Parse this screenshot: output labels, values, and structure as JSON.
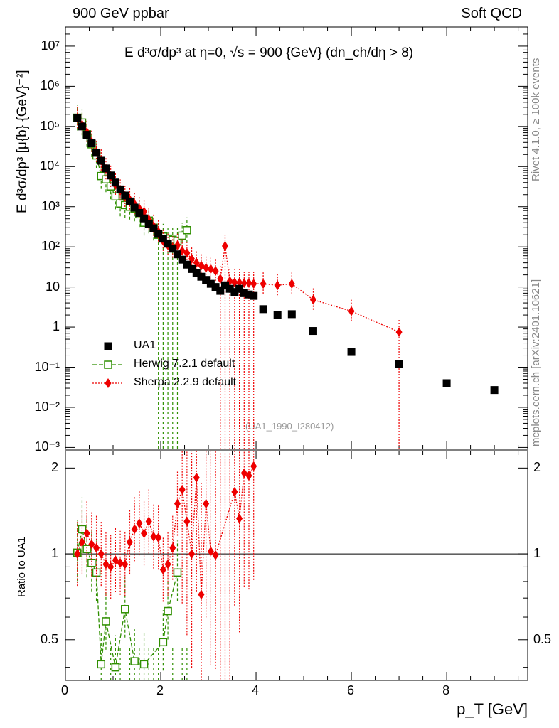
{
  "header": {
    "left": "900 GeV ppbar",
    "right": "Soft QCD"
  },
  "side_labels": {
    "top": "Rivet 4.1.0, ≥ 100k events",
    "bottom": "mcplots.cern.ch [arXiv:2401.10621]"
  },
  "reference_id": "(UA1_1990_I280412)",
  "chart_data": {
    "type": "scatter",
    "title": "E d³σ/dp³ at η=0, √s = 900 {GeV} (dn_ch/dη > 8)",
    "xlabel": "p_T [GeV]",
    "ylabel_top": "E d³σ/dp³ [μ{b} {GeV}⁻²]",
    "ylabel_bottom": "Ratio to UA1",
    "xlim": [
      0,
      9.7
    ],
    "ylim_top": [
      0.0009,
      30000000
    ],
    "ylim_bottom": [
      0.36,
      2.3
    ],
    "y_scale_top": "log",
    "y_scale_bottom": "log",
    "x_ticks": [
      "0",
      "2",
      "4",
      "6",
      "8"
    ],
    "y_ticks_top": [
      "10⁻³",
      "10⁻²",
      "10⁻¹",
      "1",
      "10",
      "10²",
      "10³",
      "10⁴",
      "10⁵",
      "10⁶",
      "10⁷"
    ],
    "y_ticks_bottom": [
      "0.5",
      "1",
      "2"
    ],
    "legend_position": "bottom-left",
    "series": [
      {
        "name": "UA1",
        "color": "#000000",
        "marker": "filled-square",
        "x": [
          0.25,
          0.35,
          0.45,
          0.55,
          0.65,
          0.75,
          0.85,
          0.95,
          1.05,
          1.15,
          1.25,
          1.35,
          1.45,
          1.55,
          1.65,
          1.75,
          1.85,
          1.95,
          2.05,
          2.15,
          2.25,
          2.35,
          2.45,
          2.55,
          2.65,
          2.75,
          2.85,
          2.95,
          3.05,
          3.15,
          3.25,
          3.35,
          3.45,
          3.55,
          3.65,
          3.75,
          3.85,
          3.95,
          4.15,
          4.45,
          4.75,
          5.2,
          6.0,
          7.0,
          8.0,
          9.0
        ],
        "y": [
          160000,
          100000,
          62000,
          38000,
          22000,
          14000,
          9000,
          6000,
          4000,
          2700,
          1900,
          1350,
          950,
          700,
          510,
          370,
          290,
          210,
          160,
          120,
          90,
          65,
          48,
          36,
          28,
          22,
          18,
          15,
          12,
          10,
          8,
          11,
          9,
          7.5,
          9,
          7,
          6.5,
          6,
          2.8,
          2.0,
          2.1,
          0.8,
          0.24,
          0.12,
          0.04,
          0.027
        ]
      },
      {
        "name": "Herwig 7.2.1 default",
        "color": "#2f8f00",
        "marker": "open-square",
        "x": [
          0.25,
          0.35,
          0.45,
          0.55,
          0.65,
          0.75,
          0.85,
          0.95,
          1.05,
          1.15,
          1.25,
          1.35,
          1.45,
          1.55,
          1.65,
          1.75,
          1.85,
          1.95,
          2.05,
          2.15,
          2.25,
          2.35,
          2.45,
          2.55
        ],
        "y": [
          165000,
          125000,
          64000,
          36000,
          19000,
          5800,
          4800,
          3200,
          1800,
          1200,
          1100,
          1000,
          900,
          650,
          400,
          450,
          300,
          200,
          180,
          160,
          150,
          140,
          190,
          260
        ],
        "ratio": [
          1.01,
          1.22,
          1.04,
          0.93,
          0.86,
          0.41,
          0.58,
          null,
          0.4,
          null,
          0.64,
          null,
          0.42,
          null,
          0.41,
          null,
          null,
          null,
          0.49,
          0.63,
          null,
          0.86,
          null,
          null
        ]
      },
      {
        "name": "Sherpa 2.2.9 default",
        "color": "#ee0000",
        "marker": "filled-diamond",
        "x": [
          0.25,
          0.35,
          0.45,
          0.55,
          0.65,
          0.75,
          0.85,
          0.95,
          1.05,
          1.15,
          1.25,
          1.35,
          1.45,
          1.55,
          1.65,
          1.75,
          1.85,
          1.95,
          2.05,
          2.15,
          2.25,
          2.35,
          2.45,
          2.55,
          2.65,
          2.75,
          2.85,
          2.95,
          3.05,
          3.15,
          3.25,
          3.35,
          3.45,
          3.55,
          3.65,
          3.75,
          3.85,
          3.95,
          4.15,
          4.45,
          4.75,
          5.2,
          6.0,
          7.0
        ],
        "y": [
          160000,
          110000,
          72000,
          41000,
          23000,
          14000,
          8500,
          5500,
          3500,
          2500,
          1750,
          1500,
          1150,
          900,
          750,
          480,
          330,
          240,
          140,
          110,
          95,
          110,
          80,
          70,
          50,
          40,
          34,
          30,
          28,
          25,
          16,
          105,
          14,
          13,
          13,
          12.5,
          12.5,
          12,
          12,
          11,
          12,
          4.8,
          2.5,
          0.75
        ],
        "ratio": [
          1.0,
          1.1,
          1.18,
          1.08,
          1.05,
          1.0,
          0.92,
          0.9,
          0.95,
          0.93,
          0.92,
          1.1,
          1.22,
          1.28,
          1.18,
          1.3,
          1.15,
          1.14,
          0.88,
          0.92,
          1.05,
          1.5,
          1.68,
          1.3,
          1.0,
          1.85,
          0.72,
          1.5,
          1.02,
          0.99,
          null,
          null,
          null,
          1.65,
          1.33,
          1.92,
          1.88,
          2.03,
          null,
          null,
          null,
          null,
          null,
          null
        ]
      }
    ]
  }
}
